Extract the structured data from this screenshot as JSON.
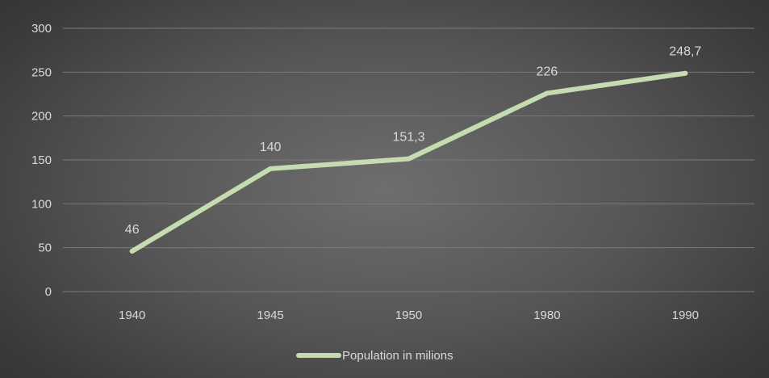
{
  "chart_data": {
    "type": "line",
    "categories": [
      "1940",
      "1945",
      "1950",
      "1980",
      "1990"
    ],
    "series": [
      {
        "name": "Population in milions",
        "values": [
          46,
          140,
          151.3,
          226,
          248.7
        ],
        "labels": [
          "46",
          "140",
          "151,3",
          "226",
          "248,7"
        ],
        "color": "#c5dbb0"
      }
    ],
    "y_ticks": [
      "0",
      "50",
      "100",
      "150",
      "200",
      "250",
      "300"
    ],
    "ylim": [
      0,
      300
    ],
    "grid": true,
    "legend_position": "bottom",
    "background": "#555555"
  }
}
